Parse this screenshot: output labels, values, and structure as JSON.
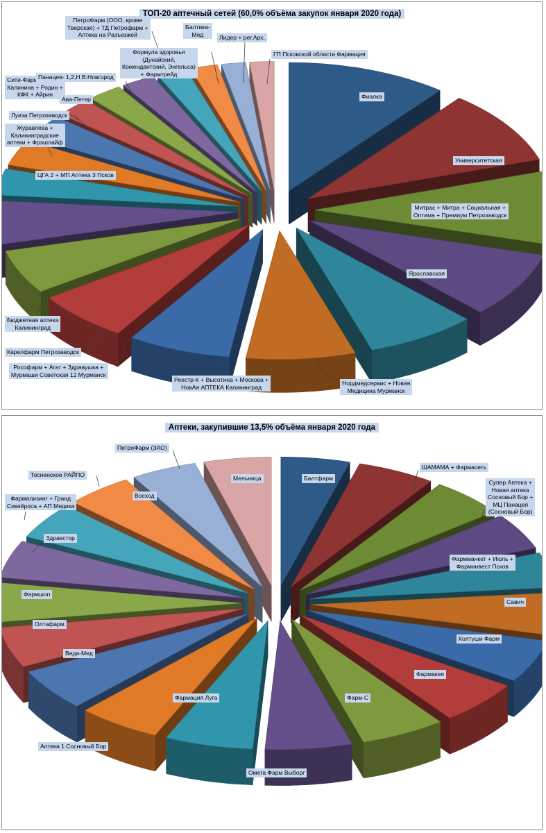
{
  "chart_data": [
    {
      "type": "pie",
      "title": "ТОП-20 аптечный сетей (60,0% объёма закупок января 2020 года)",
      "categories": [
        "Фиалка",
        "Университетская",
        "Митрас + Митра + Социальная + Оптима + Премиум Петрозаводск",
        "Ярославская",
        "Нордмедсервис + Новая Медицина Мурманск",
        "Реестр-К + Высотина + Москова + НовАя АПТЕКА Калининград",
        "Рософарм + Агат + Здравушка + Мурмаши Советская 12 Мурманск",
        "Карелфарм Петрозаводск",
        "Бюджетная аптека Калининград",
        "Сити-Фарм + аптеки Калинина + Родин + КФК + Айрин",
        "ЦГА 2 + МП Аптека 3 Псков",
        "Журавлева + Калининградские аптеки + Фрэшлайф",
        "Луиза Петрозаводск",
        "Ава-Петер",
        "Панацея- 1,2,Н В.Новгород",
        "Формула здоровья (Дунайский, Комендантский, Энгельса) + Фармтрейд",
        "ПетроФарм (ООО, кроме Тверская) + ТД Петрофарм + Аптека на Разъезжей",
        "Балтика-Мед",
        "Лидер + рег.Арх.",
        "ГП Псковской области Фармация"
      ],
      "values": [
        10.6,
        9.3,
        9.2,
        8.2,
        7.3,
        7.2,
        6.8,
        6.3,
        5.5,
        5.4,
        3.3,
        3.2,
        3.0,
        2.4,
        2.3,
        2.2,
        2.0,
        1.8,
        1.6,
        1.6
      ],
      "colors": [
        "#2e5a87",
        "#8e3533",
        "#6d8a35",
        "#5d4a82",
        "#2f8599",
        "#c06c24",
        "#3a6ba8",
        "#b23d3a",
        "#7f9a3e",
        "#644f8a",
        "#2f96ab",
        "#e07a26",
        "#4c76b0",
        "#c05452",
        "#8aa84a",
        "#7e689f",
        "#45a6bb",
        "#f08a44",
        "#98b0d6",
        "#d9a5a5"
      ]
    },
    {
      "type": "pie",
      "title": "Аптеки, закупившие 13,5% объёма января 2020 года",
      "categories": [
        "Балтфарм",
        "ШАМАМА + Фармасеть",
        "Супер Аптека + Новая аптека Сосновый Бор + МЦ Панацея (Сосновый Бор)",
        "Фармманкет + Июль + Фарминвест Псков",
        "Савич",
        "Колтуши Фарм",
        "Фармакея",
        "Фарм-С",
        "Омега Фарм Выборг",
        "Фармация Луга",
        "Аптека 1 Сосновый Бор",
        "Веда-Мед",
        "Олтафарм",
        "Фармшоп",
        "Здравстор",
        "Фармализинг + Гранд Сикейроса + АП Медика",
        "Тосненское РАЙПО",
        "Восход",
        "ПетроФарм (ЗАО)",
        "Мельница"
      ],
      "values": [
        4.6,
        5.2,
        5.0,
        4.7,
        4.5,
        5.4,
        5.5,
        5.6,
        5.7,
        5.8,
        5.9,
        5.6,
        5.4,
        5.2,
        5.0,
        4.8,
        4.7,
        4.5,
        4.4,
        4.5
      ],
      "colors": [
        "#2e5a87",
        "#8e3533",
        "#6d8a35",
        "#5d4a82",
        "#2f8599",
        "#c06c24",
        "#3a6ba8",
        "#b23d3a",
        "#7f9a3e",
        "#644f8a",
        "#2f96ab",
        "#e07a26",
        "#4c76b0",
        "#c05452",
        "#8aa84a",
        "#7e689f",
        "#45a6bb",
        "#f08a44",
        "#98b0d6",
        "#d9a5a5"
      ]
    }
  ],
  "labels": {
    "top": [
      "Фиалка",
      "Университетская",
      "Митрас + Митра + Социальная +\nОптима + Премиум Петрозаводск",
      "Ярославская",
      "Нордмедсервис + Новая\nМедицина Мурманск",
      "Реестр-К + Высотина + Москова +\nНовАя АПТЕКА Калининград",
      "Рософарм + Агат + Здравушка +\nМурмаши Советская 12 Мурманск",
      "Карелфарм Петрозаводск",
      "Бюджетная аптека\nКалининград",
      "Сити-Фарм + аптеки\nКалинина + Родин +\nКФК + Айрин",
      "ЦГА 2 + МП Аптека 3 Псков",
      "Журавлева +\nКалининградские\nаптеки + Фрэшлайф",
      "Луиза Петрозаводск",
      "Ава-Петер",
      "Панацея- 1,2,Н В.Новгород",
      "Формула здоровья\n(Дунайский,\nКомендантский, Энгельса)\n+ Фармтрейд",
      "ПетроФарм (ООО, кроме\nТверская) + ТД Петрофарм +\nАптека на Разъезжей",
      "Балтика-\nМед",
      "Лидер + рег.Арх.",
      "ГП Псковской области Фармация"
    ],
    "bottom": [
      "Балтфарм",
      "ШАМАМА + Фармасеть",
      "Супер Аптека +\nНовая аптека\nСосновый Бор +\nМЦ Панацея\n(Сосновый Бор)",
      "Фармманкет + Июль +\nФарминвест Псков",
      "Савич",
      "Колтуши Фарм",
      "Фармакея",
      "Фарм-С",
      "Омега Фарм Выборг",
      "Фармация Луга",
      "Аптека 1 Сосновый Бор",
      "Веда-Мед",
      "Олтафарм",
      "Фармшоп",
      "Здравстор",
      "Фармализинг + Гранд\nСикейроса + АП Медика",
      "Тосненское РАЙПО",
      "Восход",
      "ПетроФарм (ЗАО)",
      "Мельница"
    ]
  }
}
